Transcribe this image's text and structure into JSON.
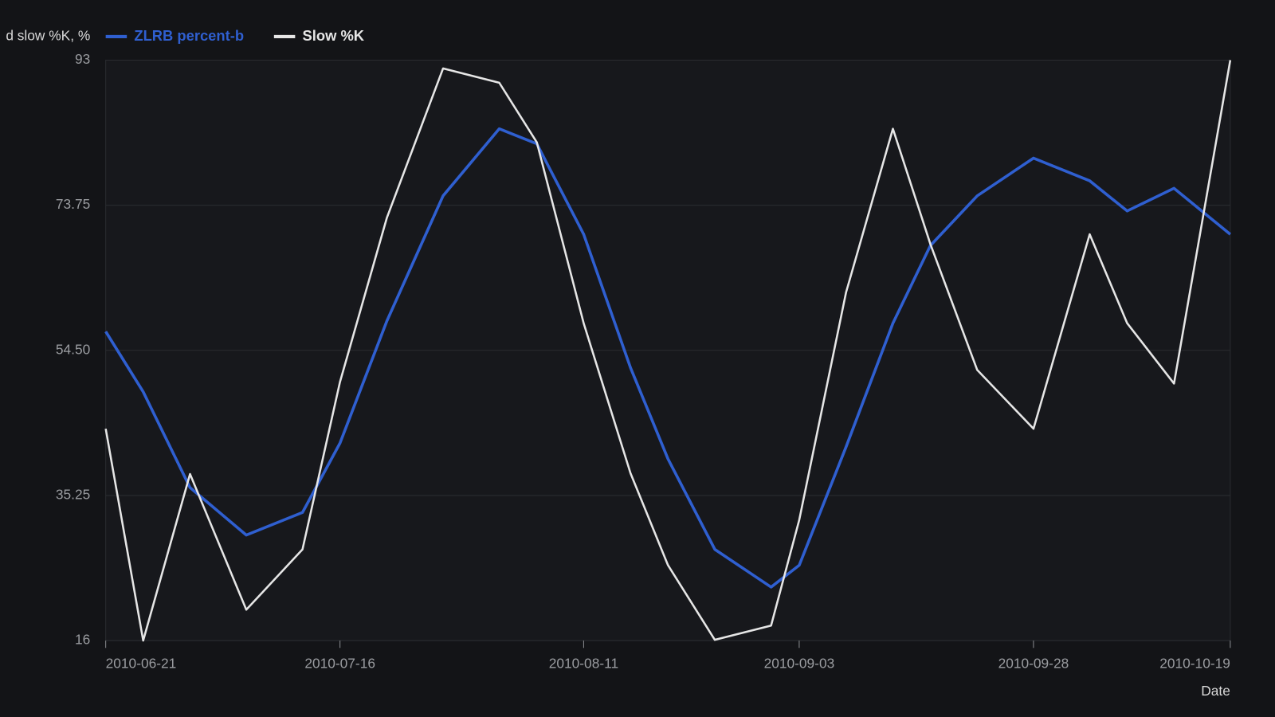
{
  "chart_data": {
    "type": "line",
    "title": "d slow %K, %",
    "x_label": "Date",
    "x": [
      "2010-06-21",
      "2010-06-25",
      "2010-06-30",
      "2010-07-06",
      "2010-07-12",
      "2010-07-16",
      "2010-07-21",
      "2010-07-27",
      "2010-08-02",
      "2010-08-06",
      "2010-08-11",
      "2010-08-16",
      "2010-08-20",
      "2010-08-25",
      "2010-08-31",
      "2010-09-03",
      "2010-09-08",
      "2010-09-13",
      "2010-09-17",
      "2010-09-22",
      "2010-09-28",
      "2010-10-04",
      "2010-10-08",
      "2010-10-13",
      "2010-10-19"
    ],
    "series": [
      {
        "name": "ZLRB percent-b",
        "color": "#2f5fd0",
        "values": [
          57.0,
          49.0,
          36.3,
          30.0,
          33.0,
          42.2,
          58.4,
          75.0,
          83.9,
          81.9,
          69.9,
          52.2,
          40.1,
          28.1,
          23.1,
          26.0,
          41.7,
          58.1,
          68.4,
          75.0,
          80.0,
          77.0,
          73.0,
          76.0,
          69.9
        ]
      },
      {
        "name": "Slow %K",
        "color": "#e6e6e6",
        "values": [
          44.1,
          16,
          38.1,
          20.1,
          28.1,
          50.3,
          72.1,
          91.9,
          90.0,
          82.1,
          58.1,
          38.2,
          26.0,
          16.1,
          18.0,
          32.0,
          62.2,
          83.9,
          68.6,
          51.9,
          44.1,
          69.9,
          58.1,
          50.1,
          93
        ]
      }
    ],
    "xlim": [
      "2010-06-21",
      "2010-10-19"
    ],
    "xticks": [
      "2010-06-21",
      "2010-07-16",
      "2010-08-11",
      "2010-09-03",
      "2010-09-28",
      "2010-10-19"
    ],
    "ylim": [
      16,
      93
    ],
    "yticks": [
      16,
      35.25,
      {
        "value": 54.5,
        "label": "54.50"
      },
      73.75,
      93
    ],
    "grid": true
  }
}
